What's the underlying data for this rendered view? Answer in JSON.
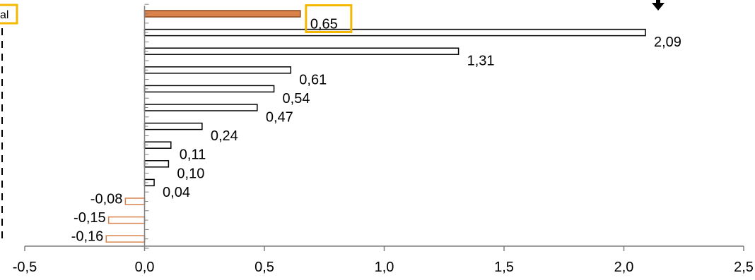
{
  "chart_data": {
    "type": "bar",
    "orientation": "horizontal",
    "title": "",
    "xlabel": "",
    "ylabel": "",
    "xlim": [
      -0.5,
      2.5
    ],
    "x_ticks": [
      "-0,5",
      "0,0",
      "0,5",
      "1,0",
      "1,5",
      "2,0",
      "2,5"
    ],
    "grid": false,
    "category_labels_visible": [
      "al"
    ],
    "bars": [
      {
        "value": 0.65,
        "label": "0,65",
        "style": "highlight"
      },
      {
        "value": 2.09,
        "label": "2,09",
        "style": "positive"
      },
      {
        "value": 1.31,
        "label": "1,31",
        "style": "positive"
      },
      {
        "value": 0.61,
        "label": "0,61",
        "style": "positive"
      },
      {
        "value": 0.54,
        "label": "0,54",
        "style": "positive"
      },
      {
        "value": 0.47,
        "label": "0,47",
        "style": "positive"
      },
      {
        "value": 0.24,
        "label": "0,24",
        "style": "positive"
      },
      {
        "value": 0.11,
        "label": "0,11",
        "style": "positive"
      },
      {
        "value": 0.1,
        "label": "0,10",
        "style": "positive"
      },
      {
        "value": 0.04,
        "label": "0,04",
        "style": "positive"
      },
      {
        "value": -0.08,
        "label": "-0,08",
        "style": "negative"
      },
      {
        "value": -0.15,
        "label": "-0,15",
        "style": "negative"
      },
      {
        "value": -0.16,
        "label": "-0,16",
        "style": "negative"
      }
    ],
    "colors": {
      "highlight_fill": "#d9834a",
      "negative_stroke": "#d9834a",
      "positive_stroke": "#000000",
      "callout_border": "#f5b800"
    },
    "annotations": [
      "down-arrow-icon"
    ]
  }
}
